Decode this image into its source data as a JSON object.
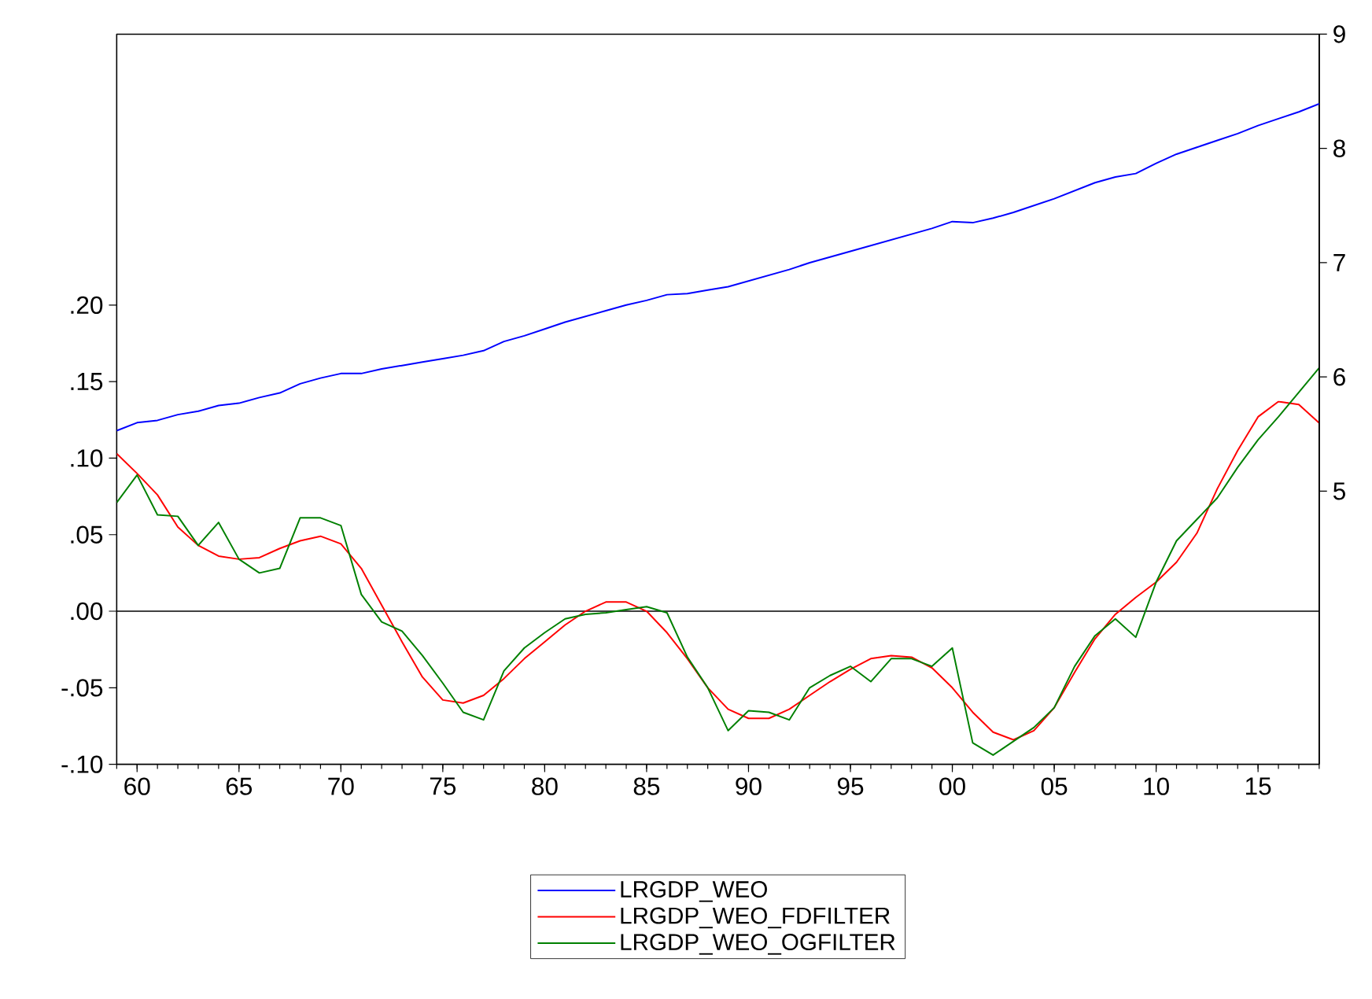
{
  "chart_data": {
    "type": "line",
    "x": [
      1959,
      1960,
      1961,
      1962,
      1963,
      1964,
      1965,
      1966,
      1967,
      1968,
      1969,
      1970,
      1971,
      1972,
      1973,
      1974,
      1975,
      1976,
      1977,
      1978,
      1979,
      1980,
      1981,
      1982,
      1983,
      1984,
      1985,
      1986,
      1987,
      1988,
      1989,
      1990,
      1991,
      1992,
      1993,
      1994,
      1995,
      1996,
      1997,
      1998,
      1999,
      2000,
      2001,
      2002,
      2003,
      2004,
      2005,
      2006,
      2007,
      2008,
      2009,
      2010,
      2011,
      2012,
      2013,
      2014,
      2015,
      2016,
      2017,
      2018
    ],
    "xlim": [
      1959,
      2018
    ],
    "xticks": [
      {
        "value": 1960,
        "label": "60"
      },
      {
        "value": 1965,
        "label": "65"
      },
      {
        "value": 1970,
        "label": "70"
      },
      {
        "value": 1975,
        "label": "75"
      },
      {
        "value": 1980,
        "label": "80"
      },
      {
        "value": 1985,
        "label": "85"
      },
      {
        "value": 1990,
        "label": "90"
      },
      {
        "value": 1995,
        "label": "95"
      },
      {
        "value": 2000,
        "label": "00"
      },
      {
        "value": 2005,
        "label": "05"
      },
      {
        "value": 2010,
        "label": "10"
      },
      {
        "value": 2015,
        "label": "15"
      }
    ],
    "ylim": [
      -0.1,
      0.377
    ],
    "yticks": [
      {
        "value": -0.1,
        "label": "-.10"
      },
      {
        "value": -0.05,
        "label": "-.05"
      },
      {
        "value": 0,
        "label": ".00"
      },
      {
        "value": 0.05,
        "label": ".05"
      },
      {
        "value": 0.1,
        "label": ".10"
      },
      {
        "value": 0.15,
        "label": ".15"
      },
      {
        "value": 0.2,
        "label": ".20"
      }
    ],
    "y2lim": [
      2.61,
      9
    ],
    "y2ticks": [
      5,
      6,
      7,
      8,
      9
    ],
    "ref_lines": [
      {
        "axis": "y",
        "value": 0,
        "color": "#000000"
      }
    ],
    "legend": "bottom",
    "series": [
      {
        "name": "LRGDP_WEO",
        "color": "#0000ff",
        "axis": "y2",
        "values": [
          5.53,
          5.6,
          5.62,
          5.67,
          5.7,
          5.75,
          5.77,
          5.82,
          5.86,
          5.94,
          5.99,
          6.03,
          6.03,
          6.07,
          6.1,
          6.13,
          6.16,
          6.19,
          6.23,
          6.31,
          6.36,
          6.42,
          6.48,
          6.53,
          6.58,
          6.63,
          6.67,
          6.72,
          6.73,
          6.76,
          6.79,
          6.84,
          6.89,
          6.94,
          7.0,
          7.05,
          7.1,
          7.15,
          7.2,
          7.25,
          7.3,
          7.36,
          7.35,
          7.39,
          7.44,
          7.5,
          7.56,
          7.63,
          7.7,
          7.75,
          7.78,
          7.87,
          7.95,
          8.01,
          8.07,
          8.13,
          8.2,
          8.26,
          8.32,
          8.39
        ]
      },
      {
        "name": "LRGDP_WEO_FDFILTER",
        "color": "#ff0000",
        "values": [
          0.103,
          0.09,
          0.076,
          0.055,
          0.043,
          0.036,
          0.034,
          0.035,
          0.041,
          0.046,
          0.049,
          0.044,
          0.028,
          0.004,
          -0.02,
          -0.043,
          -0.058,
          -0.06,
          -0.055,
          -0.044,
          -0.031,
          -0.02,
          -0.009,
          0.0,
          0.006,
          0.006,
          0.0,
          -0.014,
          -0.031,
          -0.05,
          -0.064,
          -0.07,
          -0.07,
          -0.064,
          -0.055,
          -0.046,
          -0.038,
          -0.031,
          -0.029,
          -0.03,
          -0.037,
          -0.05,
          -0.066,
          -0.079,
          -0.084,
          -0.078,
          -0.063,
          -0.04,
          -0.018,
          -0.002,
          0.009,
          0.019,
          0.032,
          0.051,
          0.08,
          0.105,
          0.127,
          0.137,
          0.135,
          0.123
        ]
      },
      {
        "name": "LRGDP_WEO_OGFILTER",
        "color": "#008000",
        "values": [
          0.071,
          0.089,
          0.063,
          0.062,
          0.043,
          0.058,
          0.034,
          0.025,
          0.028,
          0.061,
          0.061,
          0.056,
          0.011,
          -0.007,
          -0.013,
          -0.029,
          -0.047,
          -0.066,
          -0.071,
          -0.039,
          -0.024,
          -0.014,
          -0.005,
          -0.002,
          -0.001,
          0.001,
          0.003,
          -0.001,
          -0.03,
          -0.05,
          -0.078,
          -0.065,
          -0.066,
          -0.071,
          -0.05,
          -0.042,
          -0.036,
          -0.046,
          -0.031,
          -0.031,
          -0.036,
          -0.024,
          -0.086,
          -0.094,
          -0.085,
          -0.076,
          -0.063,
          -0.036,
          -0.016,
          -0.005,
          -0.017,
          0.019,
          0.046,
          0.06,
          0.074,
          0.094,
          0.112,
          0.127,
          0.143,
          0.159
        ]
      }
    ]
  }
}
